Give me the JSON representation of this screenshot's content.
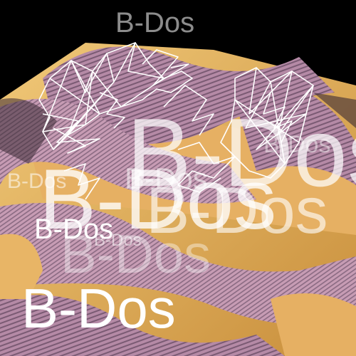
{
  "background": {
    "description_icon": "wavy-striped-landscape",
    "colors": {
      "sky": "#000000",
      "gold": "#e9b45a",
      "mauve": "#b58aa6",
      "mauve_dark": "#7a5a73",
      "shadow": "#3a2a35"
    }
  },
  "overlay": {
    "color": "#ffffff",
    "icon": "wireframe-polygon-icon"
  },
  "labels": [
    "B-Dos",
    "B-Dos",
    "B-Dos",
    "B-Dos",
    "B-Dos",
    "B-Dos",
    "B-Dos",
    "B-Dos",
    "B-Dos",
    "B-Dos",
    "B-Dos"
  ]
}
